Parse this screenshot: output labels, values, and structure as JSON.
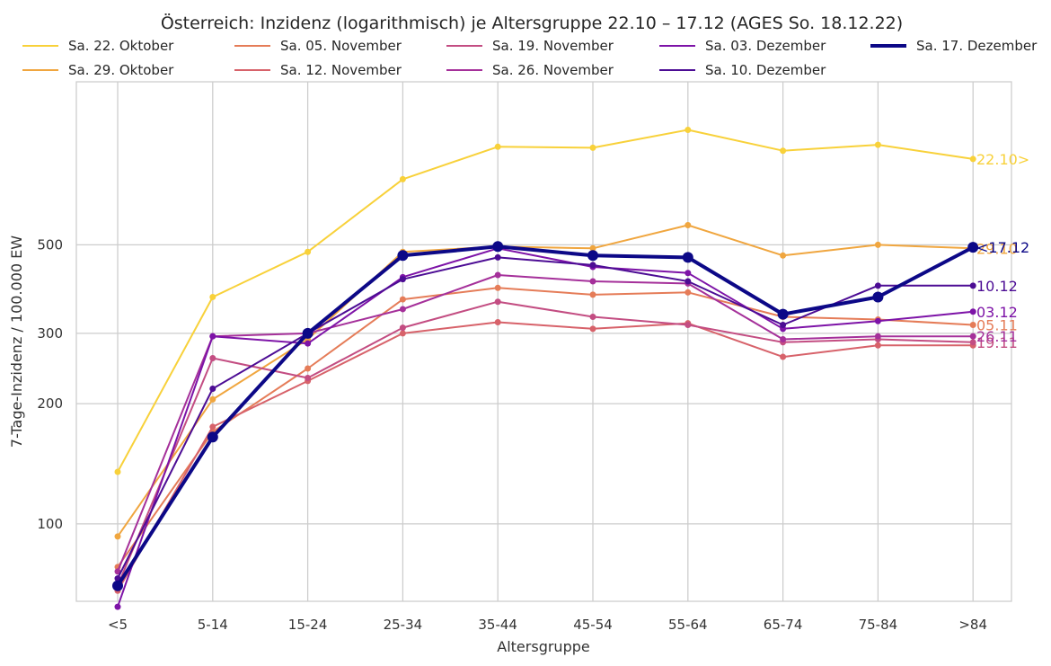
{
  "chart_data": {
    "type": "line",
    "title": "Österreich: Inzidenz (logarithmisch) je Altersgruppe 22.10 – 17.12 (AGES So. 18.12.22)",
    "xlabel": "Altersgruppe",
    "ylabel": "7-Tage-Inzidenz / 100.000 EW",
    "yscale": "log",
    "ylim": [
      64,
      1280
    ],
    "yticks": [
      100,
      200,
      300,
      500
    ],
    "grid": true,
    "legend_position": "top",
    "categories": [
      "<5",
      "5-14",
      "15-24",
      "25-34",
      "35-44",
      "45-54",
      "55-64",
      "65-74",
      "75-84",
      ">84"
    ],
    "series": [
      {
        "name": "Sa. 22. Oktober",
        "end_label": "22.10>",
        "color": "#f8d13a",
        "width": 2,
        "marker": 3.5,
        "values": [
          135,
          370,
          480,
          730,
          880,
          875,
          970,
          860,
          890,
          820
        ]
      },
      {
        "name": "Sa. 29. Oktober",
        "end_label": "29.10",
        "color": "#f0a63f",
        "width": 2,
        "marker": 3.5,
        "values": [
          93,
          205,
          290,
          480,
          495,
          490,
          560,
          470,
          500,
          490
        ]
      },
      {
        "name": "Sa. 05. November",
        "end_label": "05.11",
        "color": "#e57c58",
        "width": 2,
        "marker": 3.5,
        "values": [
          78,
          170,
          245,
          365,
          390,
          375,
          380,
          330,
          325,
          315
        ]
      },
      {
        "name": "Sa. 12. November",
        "end_label": "",
        "color": "#d7626a",
        "width": 2,
        "marker": 3.5,
        "values": [
          68,
          175,
          228,
          300,
          320,
          308,
          318,
          262,
          280,
          280
        ]
      },
      {
        "name": "Sa. 19. November",
        "end_label": "19.11",
        "color": "#c34d82",
        "width": 2,
        "marker": 3.5,
        "values": [
          70,
          260,
          232,
          310,
          360,
          330,
          315,
          285,
          290,
          285
        ]
      },
      {
        "name": "Sa. 26. November",
        "end_label": "26.11",
        "color": "#a5309a",
        "width": 2,
        "marker": 3.5,
        "values": [
          76,
          295,
          300,
          345,
          420,
          405,
          400,
          290,
          295,
          295
        ]
      },
      {
        "name": "Sa. 03. Dezember",
        "end_label": "03.12",
        "color": "#7d13a7",
        "width": 2,
        "marker": 3.5,
        "values": [
          62,
          295,
          283,
          415,
          490,
          440,
          425,
          308,
          322,
          340
        ]
      },
      {
        "name": "Sa. 10. Dezember",
        "end_label": "10.12",
        "color": "#4c0c94",
        "width": 2,
        "marker": 3.5,
        "values": [
          73,
          218,
          300,
          410,
          465,
          445,
          405,
          315,
          395,
          395
        ]
      },
      {
        "name": "Sa. 17. Dezember",
        "end_label": "<17.12",
        "color": "#0c0887",
        "width": 4,
        "marker": 6,
        "values": [
          70,
          165,
          300,
          470,
          495,
          470,
          465,
          335,
          370,
          493
        ]
      }
    ]
  }
}
